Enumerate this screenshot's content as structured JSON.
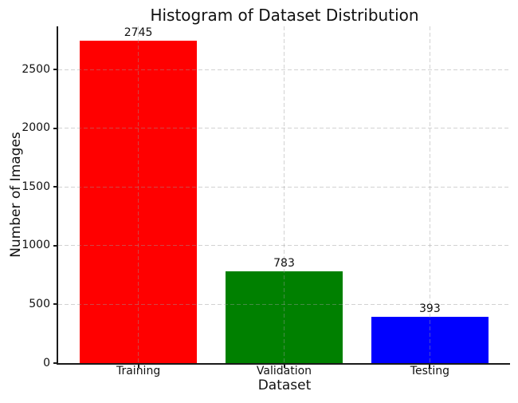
{
  "chart_data": {
    "type": "bar",
    "title": "Histogram of Dataset Distribution",
    "xlabel": "Dataset",
    "ylabel": "Number of Images",
    "categories": [
      "Training",
      "Validation",
      "Testing"
    ],
    "values": [
      2745,
      783,
      393
    ],
    "bar_value_labels": [
      "2745",
      "783",
      "393"
    ],
    "bar_colors": [
      "#ff0000",
      "#008000",
      "#0000ff"
    ],
    "yticks": [
      0,
      500,
      1000,
      1500,
      2000,
      2500
    ],
    "ylim": [
      0,
      2867
    ],
    "xlim": [
      -0.55,
      2.55
    ],
    "bar_width": 0.8,
    "grid": {
      "linestyle": "dashed",
      "axes": "both",
      "color": "#9a9a9a",
      "opacity": 0.45
    },
    "legend_position": "none",
    "colors": {
      "background": "#ffffff",
      "spine": "#1a1a1a",
      "text": "#111111"
    }
  }
}
